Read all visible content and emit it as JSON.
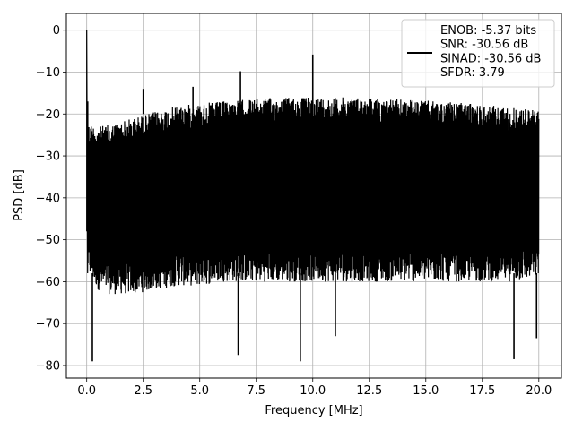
{
  "chart_data": {
    "type": "line",
    "xlabel": "Frequency [MHz]",
    "ylabel": "PSD [dB]",
    "xlim": [
      -0.9,
      21.0
    ],
    "ylim": [
      -83,
      4
    ],
    "x_ticks": [
      0.0,
      2.5,
      5.0,
      7.5,
      10.0,
      12.5,
      15.0,
      17.5,
      20.0
    ],
    "x_tick_labels": [
      "0.0",
      "2.5",
      "5.0",
      "7.5",
      "10.0",
      "12.5",
      "15.0",
      "17.5",
      "20.0"
    ],
    "y_ticks": [
      0,
      -10,
      -20,
      -30,
      -40,
      -50,
      -60,
      -70,
      -80
    ],
    "y_tick_labels": [
      "0",
      "−10",
      "−20",
      "−30",
      "−40",
      "−50",
      "−60",
      "−70",
      "−80"
    ],
    "grid": true,
    "legend_position": "top-right",
    "series": [
      {
        "name": "ENOB: -5.37 bits\nSNR: -30.56 dB\nSINAD: -30.56 dB\nSFDR: 3.79",
        "color": "#000000",
        "envelope": {
          "x": [
            0.05,
            0.5,
            1.0,
            2.0,
            3.0,
            4.0,
            5.0,
            6.0,
            7.0,
            8.0,
            9.0,
            10.0,
            11.0,
            12.0,
            13.0,
            14.0,
            15.0,
            16.0,
            17.0,
            18.0,
            19.0,
            20.0
          ],
          "upper": [
            -22,
            -23,
            -22.5,
            -21,
            -19.5,
            -18,
            -17.5,
            -17,
            -16.5,
            -16.2,
            -16,
            -16,
            -16,
            -16,
            -16.2,
            -16.5,
            -16.8,
            -17.2,
            -17.5,
            -18,
            -18.5,
            -19
          ],
          "lower": [
            -58,
            -62,
            -63,
            -63,
            -62,
            -61,
            -61,
            -60,
            -60,
            -60,
            -60,
            -60,
            -60,
            -60,
            -60,
            -60,
            -60,
            -60,
            -60,
            -60,
            -60,
            -59
          ]
        },
        "peaks": [
          {
            "x": 0.0,
            "y": 0.0
          },
          {
            "x": 2.5,
            "y": -14
          },
          {
            "x": 4.7,
            "y": -13.5
          },
          {
            "x": 6.8,
            "y": -9.8
          },
          {
            "x": 10.0,
            "y": -5.8
          }
        ],
        "dips": [
          {
            "x": 0.25,
            "y": -79
          },
          {
            "x": 6.7,
            "y": -77.5
          },
          {
            "x": 9.45,
            "y": -79
          },
          {
            "x": 11.0,
            "y": -73
          },
          {
            "x": 18.9,
            "y": -78.5
          },
          {
            "x": 19.9,
            "y": -73.5
          }
        ]
      }
    ]
  }
}
